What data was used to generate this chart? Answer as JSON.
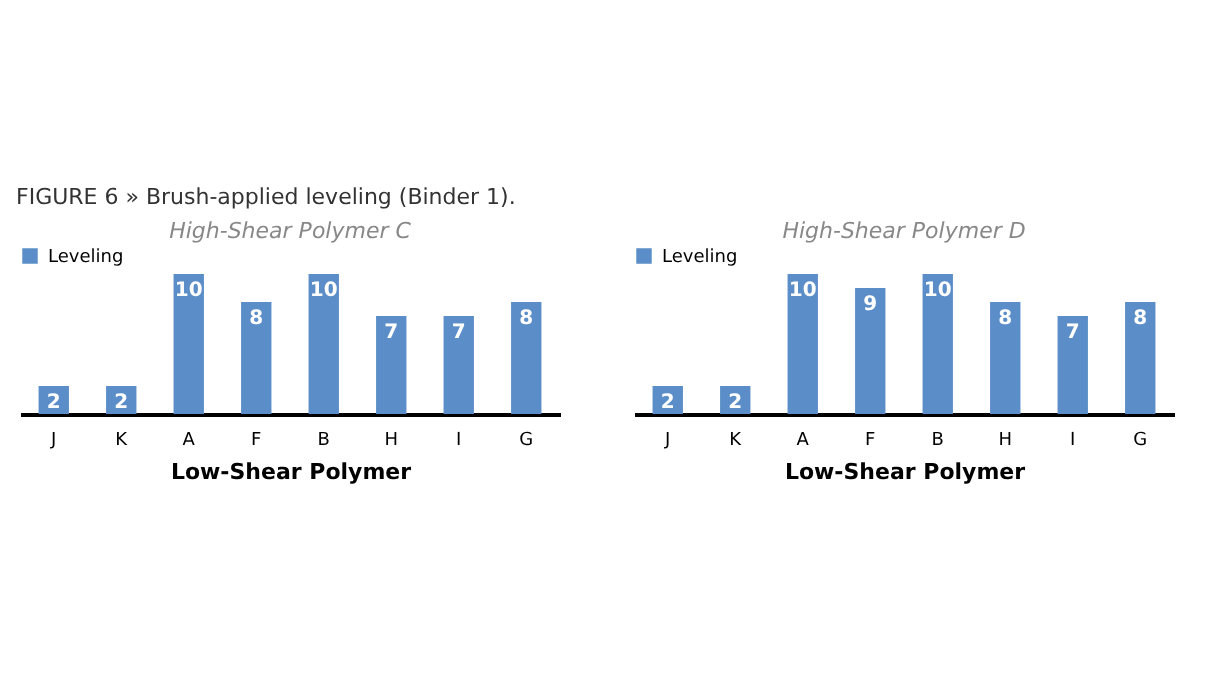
{
  "chart_data": [
    {
      "type": "bar",
      "title": "High-Shear Polymer C",
      "xlabel": "Low-Shear Polymer",
      "annotations": [
        "FIGURE 6 » Brush-applied leveling (Binder 1)."
      ],
      "categories": [
        "J",
        "K",
        "A",
        "F",
        "B",
        "H",
        "I",
        "G"
      ],
      "series": [
        {
          "name": "Leveling",
          "color": "#5b8ec8",
          "values": [
            2,
            2,
            10,
            8,
            10,
            7,
            7,
            8
          ]
        }
      ],
      "data_labels": true,
      "legend": "top",
      "tick_labels": "x"
    },
    {
      "type": "bar",
      "title": "High-Shear Polymer D",
      "xlabel": "Low-Shear Polymer",
      "categories": [
        "J",
        "K",
        "A",
        "F",
        "B",
        "H",
        "I",
        "G"
      ],
      "series": [
        {
          "name": "Leveling",
          "color": "#5b8ec8",
          "values": [
            2,
            2,
            10,
            9,
            10,
            8,
            7,
            8
          ]
        }
      ],
      "data_labels": true,
      "legend": "top",
      "tick_labels": "x"
    }
  ]
}
